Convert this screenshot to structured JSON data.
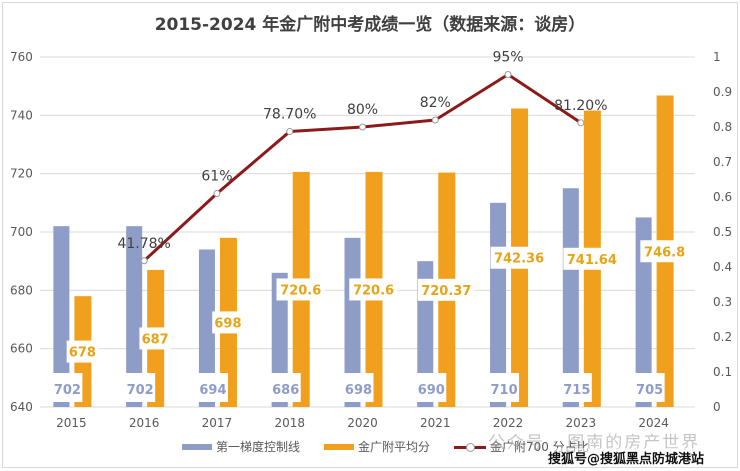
{
  "chart_data": {
    "type": "bar",
    "title": "2015-2024 年金广附中考成绩一览（数据来源：谈房）",
    "categories": [
      "2015",
      "2016",
      "2017",
      "2018",
      "2020",
      "2021",
      "2022",
      "2023",
      "2024"
    ],
    "series": [
      {
        "name": "第一梯度控制线",
        "type": "bar",
        "axis": "left",
        "color": "#8e9cc8",
        "values": [
          702,
          702,
          694,
          686,
          698,
          690,
          710,
          715,
          705
        ],
        "labels": [
          "702",
          "702",
          "694",
          "686",
          "698",
          "690",
          "710",
          "715",
          "705"
        ]
      },
      {
        "name": "金广附平均分",
        "type": "bar",
        "axis": "left",
        "color": "#f0a01c",
        "values": [
          678,
          687,
          698,
          720.6,
          720.6,
          720.37,
          742.36,
          741.64,
          746.8
        ],
        "labels": [
          "678",
          "687",
          "698",
          "720.6",
          "720.6",
          "720.37",
          "742.36",
          "741.64",
          "746.8"
        ]
      },
      {
        "name": "金广附700 分占比",
        "type": "line",
        "axis": "right",
        "color": "#8b1a1a",
        "values": [
          null,
          0.4178,
          0.61,
          0.787,
          0.8,
          0.82,
          0.95,
          0.812,
          null
        ],
        "labels": [
          null,
          "41.78%",
          "61%",
          "78.70%",
          "80%",
          "82%",
          "95%",
          "81.20%",
          null
        ]
      }
    ],
    "y_left": {
      "min": 640,
      "max": 760,
      "ticks": [
        "640",
        "660",
        "680",
        "700",
        "720",
        "740",
        "760"
      ]
    },
    "y_right": {
      "min": 0,
      "max": 1,
      "ticks": [
        "0",
        "0.1",
        "0.2",
        "0.3",
        "0.4",
        "0.5",
        "0.6",
        "0.7",
        "0.8",
        "0.9",
        "1"
      ]
    },
    "xlabel": "",
    "ylabel": "",
    "grid": true,
    "legend": "bottom"
  },
  "watermarks": {
    "line1": "公众号 · 图南的房产世界",
    "line2": "搜狐号@搜狐黑点防城港站"
  }
}
